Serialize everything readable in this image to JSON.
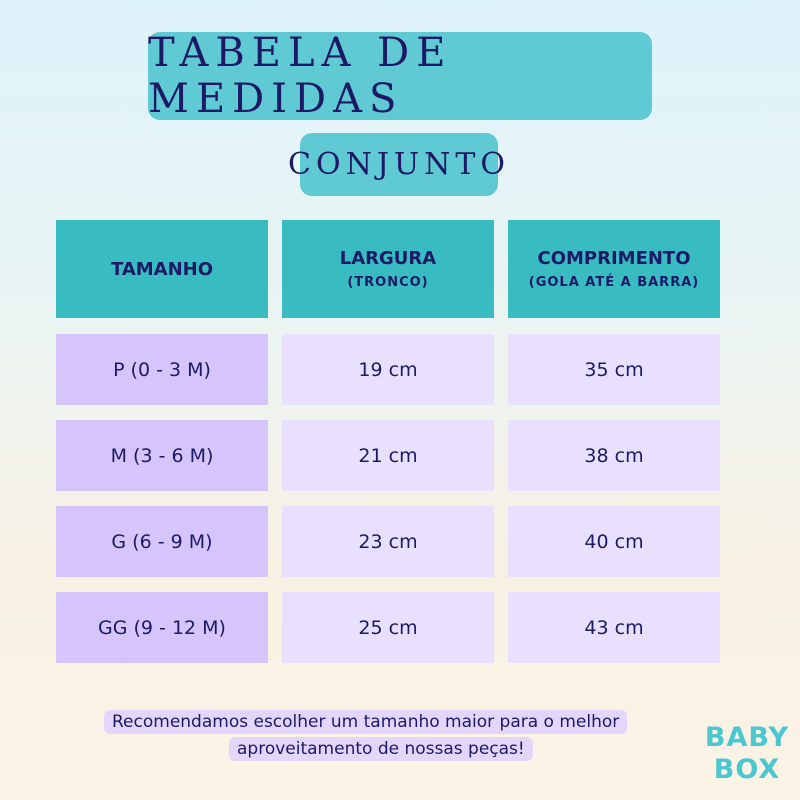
{
  "title": "Tabela de Medidas",
  "subtitle": "Conjunto",
  "table": {
    "header": [
      {
        "label": "TAMANHO"
      },
      {
        "label": "LARGURA",
        "sub": "(TRONCO)"
      },
      {
        "label": "COMPRIMENTO",
        "sub": "(GOLA ATÉ A BARRA)"
      }
    ],
    "rows": [
      [
        "P (0 - 3 M)",
        "19 cm",
        "35 cm"
      ],
      [
        "M (3 - 6 M)",
        "21 cm",
        "38 cm"
      ],
      [
        "G (6 - 9 M)",
        "23 cm",
        "40 cm"
      ],
      [
        "GG (9 - 12 M)",
        "25 cm",
        "43 cm"
      ]
    ]
  },
  "note": [
    "Recomendamos escolher um tamanho maior para o melhor",
    "aproveitamento de nossas peças!"
  ],
  "logo": [
    "BABY",
    "BOX"
  ]
}
